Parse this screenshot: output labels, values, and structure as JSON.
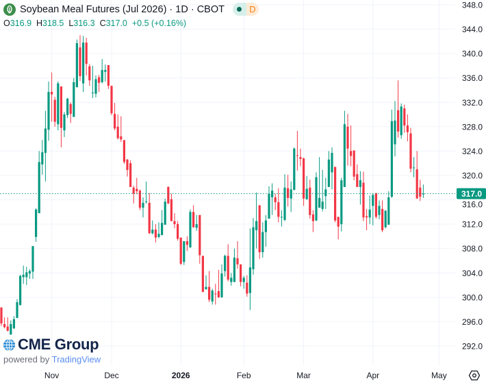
{
  "header": {
    "title": "Soybean Meal Futures (Jul 2026) · 1D · CBOT",
    "symbol_icon": "soybean-leaf-icon",
    "status_dot_color": "#0b6b58",
    "delay_badge": "D",
    "ohlc": {
      "o_label": "O",
      "o": "316.9",
      "h_label": "H",
      "h": "318.5",
      "l_label": "L",
      "l": "316.3",
      "c_label": "C",
      "c": "317.0",
      "change": "+0.5 (+0.16%)"
    }
  },
  "branding": {
    "name": "CME Group",
    "powered_by": "powered by",
    "platform": "TradingView"
  },
  "settings_icon": "gear-icon",
  "colors": {
    "up": "#089981",
    "down": "#f23645",
    "grid": "#f0f3fa",
    "last_price": "#089981"
  },
  "chart_data": {
    "type": "candlestick",
    "interval": "1D",
    "last_price": 317.0,
    "last_price_label": "317.0",
    "ylim": [
      292,
      348
    ],
    "yticks": [
      "292.0",
      "296.0",
      "300.0",
      "304.0",
      "308.0",
      "312.0",
      "316.0",
      "320.0",
      "324.0",
      "328.0",
      "332.0",
      "336.0",
      "340.0",
      "344.0",
      "348.0"
    ],
    "xticks": [
      {
        "label": "Nov",
        "date": "2025-11-03",
        "bold": false
      },
      {
        "label": "Dec",
        "date": "2025-12-01",
        "bold": false
      },
      {
        "label": "2026",
        "date": "2026-01-02",
        "bold": true
      },
      {
        "label": "Feb",
        "date": "2026-02-02",
        "bold": false
      },
      {
        "label": "Mar",
        "date": "2026-03-02",
        "bold": false
      },
      {
        "label": "Apr",
        "date": "2026-04-01",
        "bold": false
      },
      {
        "label": "May",
        "date": "2026-05-01",
        "bold": false
      }
    ],
    "grid": true,
    "columns": [
      "date",
      "open",
      "high",
      "low",
      "close"
    ],
    "candles": [
      [
        "2025-10-10",
        298.3,
        298.4,
        295.3,
        295.7
      ],
      [
        "2025-10-13",
        295.6,
        296.7,
        294.9,
        295.1
      ],
      [
        "2025-10-14",
        295.2,
        296.7,
        294.4,
        294.5
      ],
      [
        "2025-10-15",
        293.9,
        296.2,
        293.8,
        295.6
      ],
      [
        "2025-10-16",
        294.9,
        296.9,
        294.8,
        296.4
      ],
      [
        "2025-10-17",
        296.6,
        299.7,
        296.6,
        299.2
      ],
      [
        "2025-10-20",
        298.7,
        303.7,
        298.7,
        303.5
      ],
      [
        "2025-10-21",
        303.3,
        305.2,
        302.2,
        303.7
      ],
      [
        "2025-10-22",
        303.3,
        305.0,
        302.0,
        304.1
      ],
      [
        "2025-10-23",
        303.9,
        304.6,
        303.0,
        304.3
      ],
      [
        "2025-10-24",
        304.2,
        308.4,
        303.0,
        308.4
      ],
      [
        "2025-10-27",
        309.9,
        314.6,
        309.1,
        314.4
      ],
      [
        "2025-10-28",
        313.8,
        324.0,
        313.8,
        322.2
      ],
      [
        "2025-10-29",
        321.8,
        325.8,
        320.1,
        323.8
      ],
      [
        "2025-10-30",
        323.7,
        330.6,
        319.0,
        327.7
      ],
      [
        "2025-10-31",
        327.5,
        335.4,
        325.7,
        333.7
      ],
      [
        "2025-11-03",
        333.7,
        336.9,
        328.8,
        333.3
      ],
      [
        "2025-11-04",
        332.4,
        332.9,
        328.0,
        328.8
      ],
      [
        "2025-11-05",
        328.4,
        335.4,
        327.4,
        335.1
      ],
      [
        "2025-11-06",
        334.6,
        334.6,
        324.6,
        327.8
      ],
      [
        "2025-11-07",
        327.4,
        330.4,
        326.3,
        330.0
      ],
      [
        "2025-11-10",
        329.9,
        332.7,
        329.4,
        332.6
      ],
      [
        "2025-11-11",
        331.7,
        332.0,
        328.6,
        330.1
      ],
      [
        "2025-11-12",
        329.6,
        336.0,
        329.6,
        335.3
      ],
      [
        "2025-11-13",
        334.5,
        342.3,
        334.4,
        341.7
      ],
      [
        "2025-11-14",
        341.0,
        343.0,
        335.5,
        336.3
      ],
      [
        "2025-11-17",
        335.1,
        342.9,
        333.7,
        341.8
      ],
      [
        "2025-11-18",
        341.8,
        342.6,
        336.4,
        338.3
      ],
      [
        "2025-11-19",
        337.9,
        338.3,
        334.7,
        335.6
      ],
      [
        "2025-11-20",
        333.5,
        338.0,
        332.7,
        333.6
      ],
      [
        "2025-11-21",
        333.4,
        336.4,
        332.8,
        335.8
      ],
      [
        "2025-11-24",
        336.1,
        336.5,
        333.7,
        335.2
      ],
      [
        "2025-11-25",
        335.3,
        339.1,
        335.1,
        337.3
      ],
      [
        "2025-11-26",
        337.0,
        338.2,
        335.4,
        337.3
      ],
      [
        "2025-11-28",
        338.1,
        338.1,
        334.2,
        334.7
      ],
      [
        "2025-12-01",
        334.7,
        334.7,
        329.9,
        330.2
      ],
      [
        "2025-12-02",
        330.1,
        331.9,
        327.4,
        327.7
      ],
      [
        "2025-12-03",
        328.0,
        330.0,
        325.9,
        326.1
      ],
      [
        "2025-12-04",
        326.4,
        329.7,
        325.5,
        325.9
      ],
      [
        "2025-12-05",
        325.8,
        325.8,
        321.9,
        322.2
      ],
      [
        "2025-12-08",
        322.6,
        322.7,
        319.8,
        320.9
      ],
      [
        "2025-12-09",
        322.0,
        322.5,
        318.1,
        318.1
      ],
      [
        "2025-12-10",
        318.0,
        318.3,
        315.4,
        317.0
      ],
      [
        "2025-12-11",
        317.8,
        319.6,
        316.9,
        317.4
      ],
      [
        "2025-12-12",
        317.5,
        317.7,
        314.3,
        314.7
      ],
      [
        "2025-12-15",
        314.7,
        316.4,
        313.1,
        315.5
      ],
      [
        "2025-12-16",
        315.6,
        319.0,
        315.4,
        315.7
      ],
      [
        "2025-12-17",
        315.5,
        317.1,
        310.4,
        310.5
      ],
      [
        "2025-12-18",
        310.5,
        312.6,
        310.3,
        311.1
      ],
      [
        "2025-12-19",
        311.1,
        312.0,
        309.0,
        309.8
      ],
      [
        "2025-12-22",
        309.9,
        312.3,
        309.7,
        310.4
      ],
      [
        "2025-12-23",
        310.2,
        314.3,
        310.2,
        312.2
      ],
      [
        "2025-12-24",
        311.9,
        316.2,
        311.9,
        315.7
      ],
      [
        "2025-12-26",
        318.1,
        318.2,
        315.3,
        315.4
      ],
      [
        "2025-12-29",
        316.1,
        317.0,
        312.5,
        312.5
      ],
      [
        "2025-12-30",
        312.5,
        313.8,
        311.3,
        312.0
      ],
      [
        "2025-12-31",
        312.0,
        312.5,
        309.3,
        309.6
      ],
      [
        "2026-01-02",
        309.8,
        309.8,
        305.3,
        305.5
      ],
      [
        "2026-01-05",
        305.8,
        309.2,
        305.3,
        309.2
      ],
      [
        "2026-01-06",
        309.2,
        310.0,
        307.6,
        308.6
      ],
      [
        "2026-01-07",
        308.2,
        314.4,
        308.1,
        314.0
      ],
      [
        "2026-01-08",
        314.0,
        315.1,
        311.4,
        311.5
      ],
      [
        "2026-01-09",
        311.4,
        313.5,
        310.9,
        312.0
      ],
      [
        "2026-01-12",
        313.5,
        313.5,
        305.5,
        306.9
      ],
      [
        "2026-01-13",
        306.8,
        306.8,
        300.8,
        300.9
      ],
      [
        "2026-01-14",
        301.3,
        303.6,
        301.3,
        301.7
      ],
      [
        "2026-01-15",
        301.7,
        304.3,
        299.2,
        299.6
      ],
      [
        "2026-01-16",
        299.3,
        301.4,
        298.8,
        301.1
      ],
      [
        "2026-01-20",
        300.6,
        302.2,
        298.8,
        300.5
      ],
      [
        "2026-01-21",
        301.0,
        304.5,
        299.9,
        300.0
      ],
      [
        "2026-01-22",
        300.0,
        305.4,
        299.9,
        303.9
      ],
      [
        "2026-01-23",
        304.3,
        307.0,
        303.4,
        306.8
      ],
      [
        "2026-01-26",
        306.8,
        308.7,
        302.6,
        302.9
      ],
      [
        "2026-01-27",
        302.5,
        304.0,
        301.9,
        303.2
      ],
      [
        "2026-01-28",
        302.5,
        308.0,
        302.5,
        306.5
      ],
      [
        "2026-01-29",
        306.4,
        309.2,
        304.7,
        305.4
      ],
      [
        "2026-01-30",
        305.4,
        305.4,
        301.8,
        302.5
      ],
      [
        "2026-02-02",
        302.5,
        303.5,
        301.4,
        303.2
      ],
      [
        "2026-02-03",
        302.4,
        303.6,
        300.1,
        300.6
      ],
      [
        "2026-02-04",
        300.7,
        311.3,
        297.9,
        304.9
      ],
      [
        "2026-02-05",
        304.6,
        313.0,
        303.7,
        311.5
      ],
      [
        "2026-02-06",
        311.0,
        317.2,
        308.0,
        312.5
      ],
      [
        "2026-02-09",
        315.1,
        315.1,
        306.3,
        307.4
      ],
      [
        "2026-02-10",
        307.4,
        312.3,
        306.5,
        310.7
      ],
      [
        "2026-02-11",
        310.7,
        313.5,
        308.3,
        312.6
      ],
      [
        "2026-02-12",
        312.9,
        318.2,
        312.9,
        317.0
      ],
      [
        "2026-02-13",
        316.4,
        318.7,
        313.5,
        317.5
      ],
      [
        "2026-02-17",
        316.4,
        317.0,
        314.3,
        315.6
      ],
      [
        "2026-02-18",
        315.6,
        317.9,
        312.3,
        313.2
      ],
      [
        "2026-02-19",
        313.1,
        314.3,
        311.6,
        313.2
      ],
      [
        "2026-02-20",
        312.7,
        320.2,
        312.5,
        318.0
      ],
      [
        "2026-02-23",
        317.9,
        320.1,
        314.9,
        316.3
      ],
      [
        "2026-02-24",
        316.2,
        319.0,
        314.0,
        317.7
      ],
      [
        "2026-02-25",
        317.6,
        324.6,
        317.6,
        324.4
      ],
      [
        "2026-02-26",
        323.3,
        327.3,
        320.8,
        323.2
      ],
      [
        "2026-02-27",
        323.0,
        324.4,
        321.5,
        322.7
      ],
      [
        "2026-03-02",
        322.8,
        322.9,
        315.0,
        316.2
      ],
      [
        "2026-03-03",
        316.1,
        319.9,
        316.0,
        317.8
      ],
      [
        "2026-03-04",
        318.0,
        319.3,
        312.9,
        313.5
      ],
      [
        "2026-03-05",
        313.6,
        314.3,
        310.7,
        312.5
      ],
      [
        "2026-03-06",
        312.6,
        320.5,
        312.5,
        319.7
      ],
      [
        "2026-03-09",
        314.7,
        323.0,
        314.7,
        316.3
      ],
      [
        "2026-03-10",
        314.5,
        320.9,
        314.1,
        315.7
      ],
      [
        "2026-03-11",
        316.6,
        319.6,
        314.5,
        317.7
      ],
      [
        "2026-03-12",
        318.1,
        324.0,
        318.1,
        322.6
      ],
      [
        "2026-03-13",
        320.5,
        324.6,
        317.7,
        323.7
      ],
      [
        "2026-03-16",
        321.4,
        321.4,
        312.3,
        312.6
      ],
      [
        "2026-03-17",
        313.2,
        313.2,
        309.5,
        311.6
      ],
      [
        "2026-03-18",
        312.0,
        319.6,
        310.8,
        319.2
      ],
      [
        "2026-03-19",
        318.1,
        330.6,
        318.1,
        328.4
      ],
      [
        "2026-03-20",
        328.0,
        330.1,
        321.6,
        324.4
      ],
      [
        "2026-03-23",
        324.0,
        328.2,
        321.5,
        323.2
      ],
      [
        "2026-03-24",
        324.1,
        324.1,
        319.2,
        319.8
      ],
      [
        "2026-03-25",
        320.2,
        321.8,
        318.1,
        318.1
      ],
      [
        "2026-03-26",
        318.1,
        320.7,
        315.2,
        319.2
      ],
      [
        "2026-03-27",
        318.8,
        320.6,
        312.5,
        313.1
      ],
      [
        "2026-03-30",
        313.3,
        314.5,
        311.0,
        313.1
      ],
      [
        "2026-03-31",
        313.1,
        316.7,
        312.0,
        314.4
      ],
      [
        "2026-04-01",
        315.0,
        317.1,
        311.8,
        316.8
      ],
      [
        "2026-04-02",
        317.1,
        317.1,
        312.9,
        313.2
      ],
      [
        "2026-04-06",
        313.5,
        315.9,
        312.8,
        315.0
      ],
      [
        "2026-04-07",
        314.5,
        315.9,
        310.7,
        311.0
      ],
      [
        "2026-04-08",
        311.5,
        314.3,
        311.3,
        314.2
      ],
      [
        "2026-04-09",
        311.9,
        317.4,
        311.9,
        316.4
      ],
      [
        "2026-04-10",
        316.5,
        330.8,
        316.3,
        328.9
      ],
      [
        "2026-04-13",
        325.1,
        332.2,
        323.1,
        329.0
      ],
      [
        "2026-04-14",
        330.7,
        335.6,
        326.2,
        327.2
      ],
      [
        "2026-04-15",
        326.6,
        331.8,
        326.0,
        331.3
      ],
      [
        "2026-04-16",
        331.0,
        331.6,
        327.0,
        328.2
      ],
      [
        "2026-04-17",
        328.2,
        330.0,
        325.6,
        327.1
      ],
      [
        "2026-04-20",
        326.9,
        327.8,
        320.5,
        321.1
      ],
      [
        "2026-04-21",
        321.2,
        323.0,
        319.7,
        321.3
      ],
      [
        "2026-04-22",
        321.0,
        324.0,
        316.2,
        316.2
      ],
      [
        "2026-04-23",
        318.0,
        319.3,
        315.8,
        316.5
      ],
      [
        "2026-04-24",
        316.9,
        318.5,
        316.3,
        317.0
      ]
    ]
  }
}
